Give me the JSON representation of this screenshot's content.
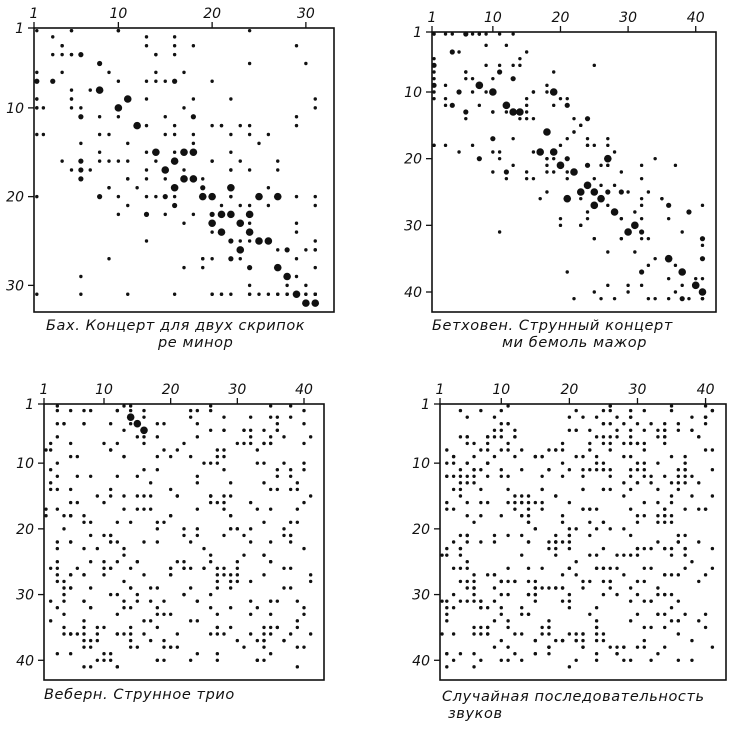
{
  "chart_data": [
    {
      "type": "scatter",
      "id": "bach",
      "caption_line1": "Бах.   Концерт для двух скрипок",
      "caption_line2": "ре минор",
      "x_ticks": [
        1,
        10,
        20,
        30
      ],
      "y_ticks": [
        1,
        10,
        20,
        30
      ],
      "xlim": [
        1,
        33
      ],
      "ylim": [
        1,
        33
      ],
      "seed": 11,
      "diag_width": 6,
      "main_points": 150,
      "scatter_points": 60,
      "big": [
        [
          8,
          8
        ],
        [
          10,
          10
        ],
        [
          12,
          12
        ],
        [
          14,
          15
        ],
        [
          16,
          16
        ],
        [
          17,
          18
        ],
        [
          18,
          18
        ],
        [
          19,
          20
        ],
        [
          20,
          20
        ],
        [
          21,
          22
        ],
        [
          22,
          22
        ],
        [
          23,
          23
        ],
        [
          24,
          24
        ],
        [
          25,
          25
        ],
        [
          26,
          25
        ],
        [
          27,
          28
        ],
        [
          28,
          29
        ],
        [
          29,
          31
        ],
        [
          30,
          32
        ],
        [
          31,
          32
        ],
        [
          15,
          17
        ],
        [
          20,
          23
        ],
        [
          23,
          26
        ],
        [
          25,
          20
        ],
        [
          27,
          20
        ],
        [
          22,
          19
        ],
        [
          18,
          15
        ],
        [
          24,
          22
        ],
        [
          17,
          15
        ],
        [
          11,
          9
        ],
        [
          16,
          19
        ],
        [
          21,
          24
        ]
      ],
      "xlabel": "",
      "ylabel": ""
    },
    {
      "type": "scatter",
      "id": "beethoven",
      "caption_line1": "Бетховен.  Струнный  концерт",
      "caption_line2": "ми бемоль мажор",
      "x_ticks": [
        1,
        10,
        20,
        30,
        40
      ],
      "y_ticks": [
        1,
        10,
        20,
        30,
        40
      ],
      "xlim": [
        1,
        43
      ],
      "ylim": [
        1,
        43
      ],
      "seed": 23,
      "diag_width": 5,
      "main_points": 160,
      "scatter_points": 40,
      "big": [
        [
          8,
          9
        ],
        [
          10,
          10
        ],
        [
          12,
          12
        ],
        [
          13,
          13
        ],
        [
          14,
          13
        ],
        [
          18,
          16
        ],
        [
          19,
          19
        ],
        [
          20,
          21
        ],
        [
          22,
          22
        ],
        [
          24,
          24
        ],
        [
          25,
          25
        ],
        [
          26,
          26
        ],
        [
          28,
          28
        ],
        [
          31,
          30
        ],
        [
          36,
          35
        ],
        [
          38,
          37
        ],
        [
          40,
          39
        ],
        [
          41,
          40
        ],
        [
          19,
          10
        ],
        [
          23,
          25
        ],
        [
          27,
          20
        ],
        [
          21,
          26
        ],
        [
          17,
          19
        ],
        [
          25,
          27
        ],
        [
          30,
          31
        ]
      ],
      "xlabel": "",
      "ylabel": ""
    },
    {
      "type": "scatter",
      "id": "webern",
      "caption_line1": "Веберн.  Струнное  трио",
      "caption_line2": "",
      "x_ticks": [
        1,
        10,
        20,
        30,
        40
      ],
      "y_ticks": [
        1,
        10,
        20,
        30,
        40
      ],
      "xlim": [
        1,
        43
      ],
      "ylim": [
        1,
        43
      ],
      "seed": 37,
      "diag_width": 0,
      "main_points": 0,
      "scatter_points": 420,
      "big": [
        [
          15,
          4
        ],
        [
          14,
          3
        ],
        [
          16,
          5
        ]
      ],
      "xlabel": "",
      "ylabel": ""
    },
    {
      "type": "scatter",
      "id": "random",
      "caption_line1": "Случайная  последовательность",
      "caption_line2": "звуков",
      "x_ticks": [
        1,
        10,
        20,
        30,
        40
      ],
      "y_ticks": [
        1,
        10,
        20,
        30,
        40
      ],
      "xlim": [
        1,
        43
      ],
      "ylim": [
        1,
        43
      ],
      "seed": 53,
      "diag_width": 0,
      "main_points": 0,
      "scatter_points": 560,
      "big": [],
      "xlabel": "",
      "ylabel": ""
    }
  ]
}
